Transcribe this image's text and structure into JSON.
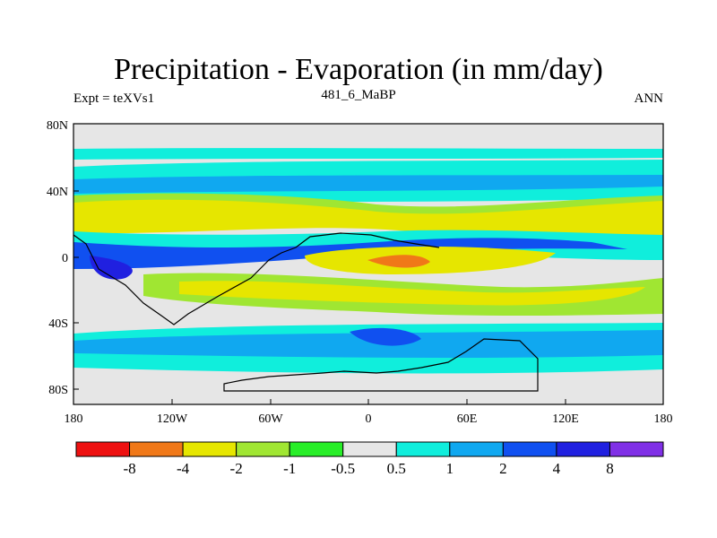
{
  "title": "Precipitation - Evaporation (in mm/day)",
  "left_label": "Expt = teXVs1",
  "center_label": "481_6_MaBP",
  "right_label": "ANN",
  "latitude_ticks": [
    "80N",
    "40N",
    "0",
    "40S",
    "80S"
  ],
  "longitude_ticks": [
    "180",
    "120W",
    "60W",
    "0",
    "60E",
    "120E",
    "180"
  ],
  "colorbar": {
    "colors": [
      "#ee1111",
      "#f07818",
      "#e6e600",
      "#a0e632",
      "#28ee28",
      "#e6e6e6",
      "#10eedc",
      "#10a8f0",
      "#1050f0",
      "#2020e0",
      "#8030e6"
    ],
    "labels": [
      "-8",
      "-4",
      "-2",
      "-1",
      "-0.5",
      "0.5",
      "1",
      "2",
      "4",
      "8"
    ]
  },
  "palette": {
    "background": "#e6e6e6",
    "light_cyan": "#10eedc",
    "light_blue": "#10a8f0",
    "blue": "#1050f0",
    "dark_blue": "#2020e0",
    "yellow": "#e6e600",
    "light_green": "#a0e632",
    "green": "#28ee28",
    "orange": "#f07818"
  }
}
